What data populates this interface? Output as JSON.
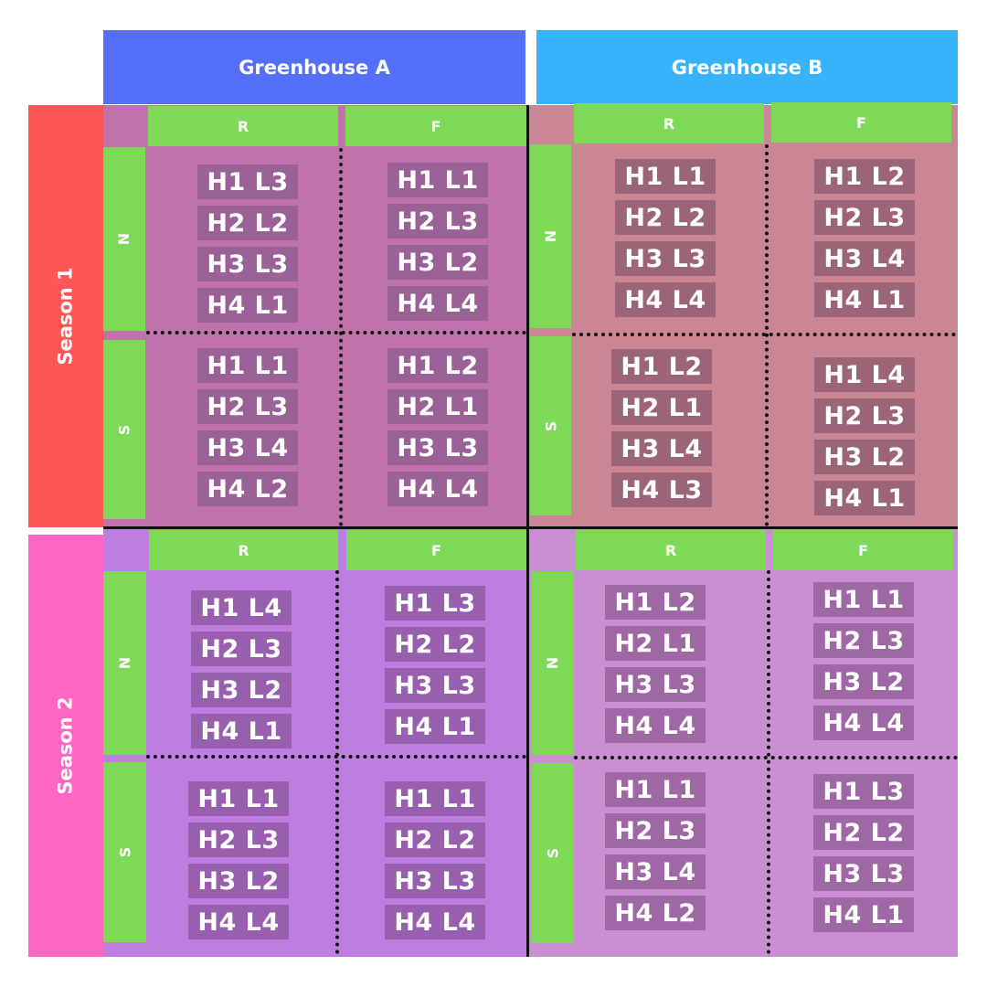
{
  "columns": [
    "Greenhouse A",
    "Greenhouse B"
  ],
  "seasons": [
    "Season 1",
    "Season 2"
  ],
  "factors": {
    "r": "R",
    "f": "F",
    "n": "N",
    "s": "S"
  },
  "colors": {
    "greenhouse_a": "#5470fa",
    "greenhouse_b": "#37b3fb",
    "season_1": "#fd5656",
    "season_2": "#ff66c4",
    "factor_label": "#7ed957"
  },
  "cells": {
    "s1_a_n_r": [
      "H1 L3",
      "H2 L2",
      "H3 L3",
      "H4 L1"
    ],
    "s1_a_n_f": [
      "H1 L1",
      "H2 L3",
      "H3 L2",
      "H4 L4"
    ],
    "s1_a_s_r": [
      "H1 L1",
      "H2 L3",
      "H3 L4",
      "H4 L2"
    ],
    "s1_a_s_f": [
      "H1 L2",
      "H2 L1",
      "H3 L3",
      "H4 L4"
    ],
    "s1_b_n_r": [
      "H1 L1",
      "H2 L2",
      "H3 L3",
      "H4 L4"
    ],
    "s1_b_n_f": [
      "H1 L2",
      "H2 L3",
      "H3 L4",
      "H4 L1"
    ],
    "s1_b_s_r": [
      "H1 L2",
      "H2 L1",
      "H3 L4",
      "H4 L3"
    ],
    "s1_b_s_f": [
      "H1 L4",
      "H2 L3",
      "H3 L2",
      "H4 L1"
    ],
    "s2_a_n_r": [
      "H1 L4",
      "H2 L3",
      "H3 L2",
      "H4 L1"
    ],
    "s2_a_n_f": [
      "H1 L3",
      "H2 L2",
      "H3 L3",
      "H4 L1"
    ],
    "s2_a_s_r": [
      "H1 L1",
      "H2 L3",
      "H3 L2",
      "H4 L4"
    ],
    "s2_a_s_f": [
      "H1 L1",
      "H2 L2",
      "H3 L3",
      "H4 L4"
    ],
    "s2_b_n_r": [
      "H1 L2",
      "H2 L1",
      "H3 L3",
      "H4 L4"
    ],
    "s2_b_n_f": [
      "H1 L1",
      "H2 L3",
      "H3 L2",
      "H4 L4"
    ],
    "s2_b_s_r": [
      "H1 L1",
      "H2 L3",
      "H3 L4",
      "H4 L2"
    ],
    "s2_b_s_f": [
      "H1 L3",
      "H2 L2",
      "H3 L3",
      "H4 L1"
    ]
  }
}
